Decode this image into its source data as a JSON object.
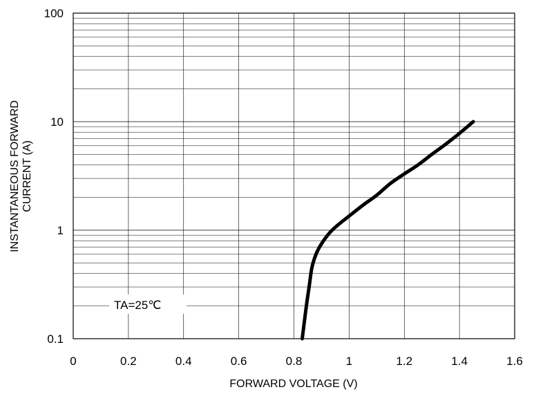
{
  "chart_data": {
    "type": "line",
    "title": "",
    "xlabel": "FORWARD VOLTAGE (V)",
    "ylabel_lines": [
      "INSTANTANEOUS FORWARD",
      "CURRENT (A)"
    ],
    "xlim": [
      0,
      1.6
    ],
    "ylim": [
      0.1,
      100
    ],
    "yscale": "log",
    "grid": true,
    "legend": "none",
    "x_ticks": [
      "0",
      "0.2",
      "0.4",
      "0.6",
      "0.8",
      "1",
      "1.2",
      "1.4",
      "1.6"
    ],
    "y_ticks": [
      "0.1",
      "1",
      "10",
      "100"
    ],
    "annotation": "TA=25℃",
    "colors": {
      "line": "#000000",
      "grid": "#000000",
      "background": "#ffffff"
    },
    "series": [
      {
        "x": [
          0.83,
          0.845,
          0.855,
          0.865,
          0.88,
          0.9,
          0.93,
          0.96,
          1.0,
          1.05,
          1.1,
          1.15,
          1.2,
          1.25,
          1.3,
          1.35,
          1.4,
          1.45
        ],
        "y": [
          0.1,
          0.2,
          0.3,
          0.45,
          0.6,
          0.75,
          0.95,
          1.12,
          1.35,
          1.7,
          2.1,
          2.7,
          3.3,
          4.0,
          5.0,
          6.2,
          7.8,
          10.0
        ]
      }
    ]
  }
}
